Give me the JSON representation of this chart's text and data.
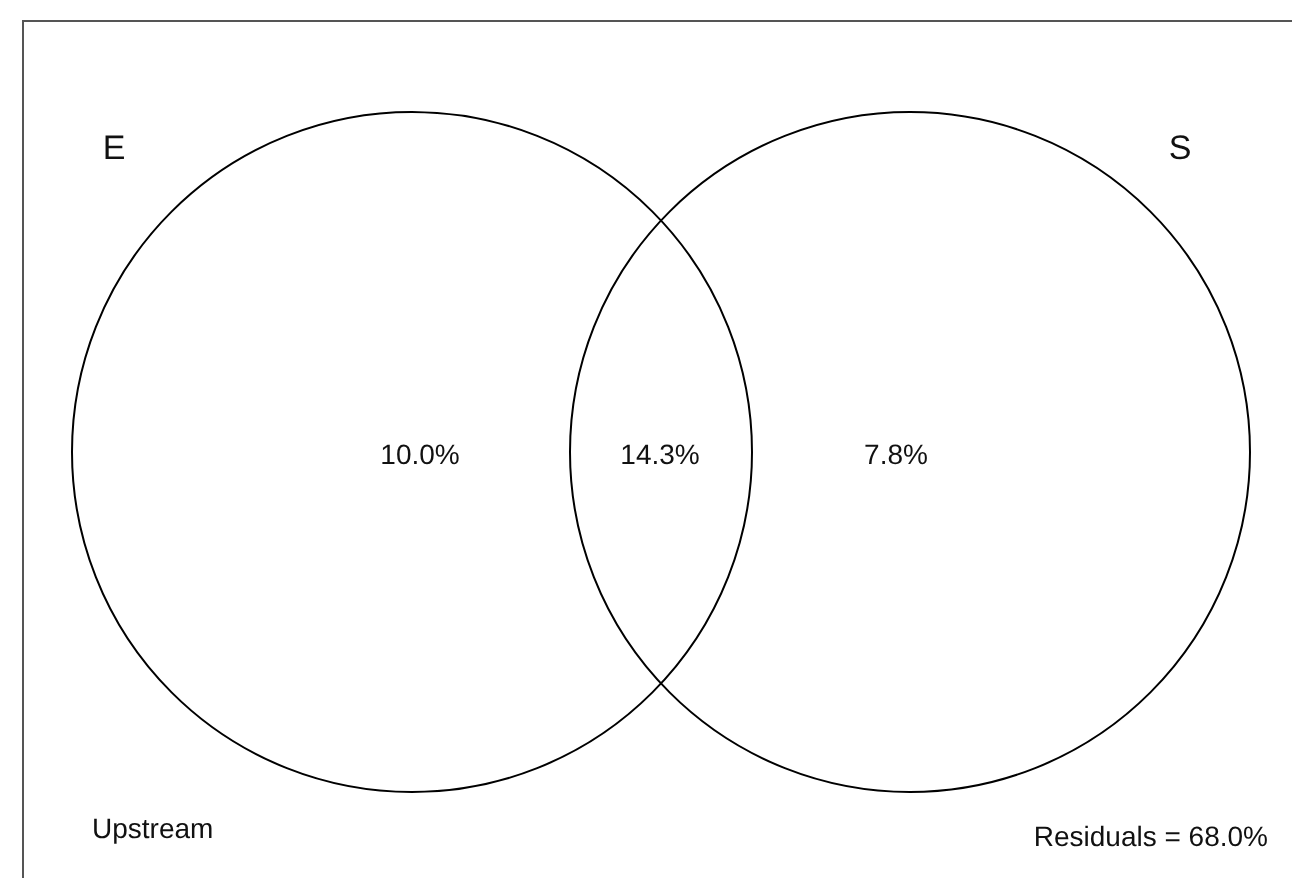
{
  "chart_data": {
    "type": "other",
    "categories": [
      "E",
      null,
      "S"
    ],
    "values": [
      10.0,
      14.3,
      7.8
    ],
    "value_labels": [
      "10.0%",
      "14.3%",
      "7.8%"
    ],
    "annotations": [
      "Upstream",
      "Residuals = 68.0%"
    ]
  }
}
